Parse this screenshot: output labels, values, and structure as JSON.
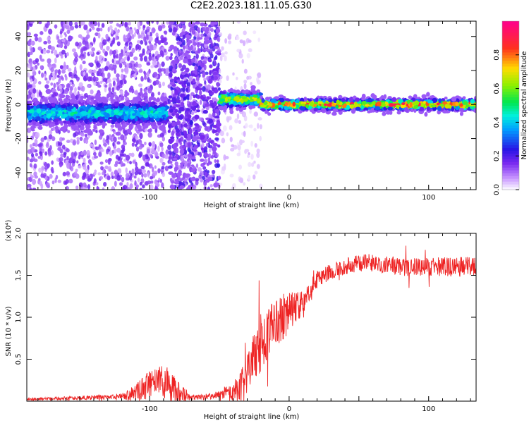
{
  "title": "C2E2.2023.181.11.05.G30",
  "chart_data": [
    {
      "type": "heatmap",
      "xlabel": "Height of straight line (km)",
      "ylabel": "Frequency (Hz)",
      "xlim": [
        -188,
        134
      ],
      "ylim": [
        -50,
        49
      ],
      "xticks": [
        -100,
        0,
        100
      ],
      "yticks": [
        -40,
        -20,
        0,
        20,
        40
      ],
      "grid": false,
      "colorbar": {
        "label": "Normalized spectral amplitude",
        "range": [
          0.0,
          1.0
        ],
        "ticks": [
          "0.0",
          "0.2",
          "0.4",
          "0.6",
          "0.8"
        ],
        "colormap": "violet-blue-cyan-green-yellow-red-magenta"
      },
      "segments": [
        {
          "x_range": [
            -188,
            -87
          ],
          "centerline_hz": -5,
          "band_width_hz": 10,
          "peak_amplitude": 0.5,
          "scatter_amplitude": 0.15
        },
        {
          "x_range": [
            -86,
            -50
          ],
          "centerline_hz": 0,
          "band_width_hz": 98,
          "peak_amplitude": 0.2,
          "scatter_amplitude": 0.2
        },
        {
          "x_range": [
            -50,
            -20
          ],
          "centerline_hz": 3,
          "band_width_hz": 6,
          "peak_amplitude": 0.75,
          "scatter_amplitude": 0.05
        },
        {
          "x_range": [
            -20,
            134
          ],
          "centerline_hz": 0,
          "band_width_hz": 4,
          "peak_amplitude": 0.95,
          "scatter_amplitude": 0.0
        }
      ]
    },
    {
      "type": "line",
      "xlabel": "Height of straight line (km)",
      "ylabel": "SNR (10 * v/v)",
      "y_multiplier": "(x10⁴)",
      "xlim": [
        -188,
        134
      ],
      "ylim": [
        0,
        2.0
      ],
      "xticks": [
        -100,
        0,
        100
      ],
      "yticks": [
        0.5,
        1.0,
        1.5,
        2.0
      ],
      "grid": false,
      "color": "#ee2222",
      "envelope": {
        "x": [
          -188,
          -150,
          -130,
          -115,
          -105,
          -95,
          -85,
          -80,
          -70,
          -60,
          -50,
          -40,
          -35,
          -30,
          -25,
          -20,
          -15,
          -10,
          -5,
          0,
          5,
          10,
          15,
          20,
          25,
          30,
          40,
          50,
          60,
          80,
          100,
          120,
          134
        ],
        "y": [
          0.02,
          0.04,
          0.05,
          0.07,
          0.15,
          0.25,
          0.2,
          0.1,
          0.04,
          0.05,
          0.08,
          0.12,
          0.18,
          0.3,
          0.55,
          0.7,
          0.8,
          0.9,
          1.0,
          1.05,
          1.1,
          1.15,
          1.3,
          1.45,
          1.5,
          1.55,
          1.6,
          1.65,
          1.65,
          1.6,
          1.6,
          1.6,
          1.6
        ]
      },
      "noise_amplitude": {
        "x": [
          -188,
          -120,
          -105,
          -85,
          -70,
          -50,
          -40,
          -20,
          0,
          20,
          40,
          134
        ],
        "y": [
          0.015,
          0.03,
          0.15,
          0.2,
          0.03,
          0.04,
          0.12,
          0.35,
          0.25,
          0.1,
          0.1,
          0.12
        ]
      }
    }
  ]
}
